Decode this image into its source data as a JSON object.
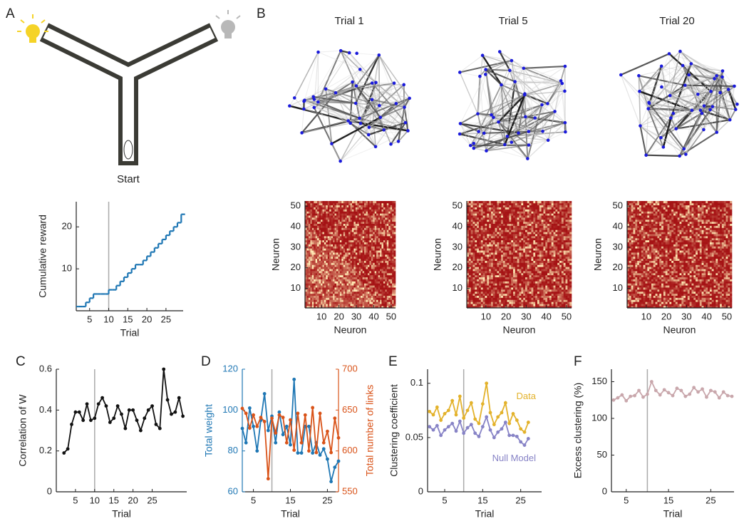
{
  "panel_labels": [
    "A",
    "B",
    "C",
    "D",
    "E",
    "F"
  ],
  "maze_label": "Start",
  "chart_data": [
    {
      "type": "step",
      "xlabel": "Trial",
      "ylabel": "Cumulative reward",
      "color": "#1f77b4",
      "x": [
        1,
        2,
        3,
        4,
        5,
        6,
        7,
        8,
        9,
        10,
        11,
        12,
        13,
        14,
        15,
        16,
        17,
        18,
        19,
        20,
        21,
        22,
        23,
        24,
        25,
        26,
        27,
        28,
        29
      ],
      "values": [
        1,
        1,
        1,
        2,
        3,
        4,
        4,
        4,
        4,
        5,
        5,
        6,
        7,
        8,
        9,
        10,
        11,
        11,
        12,
        13,
        14,
        15,
        16,
        17,
        18,
        19,
        20,
        21,
        23
      ],
      "xlim": [
        1.5,
        29.5
      ],
      "ylim": [
        0,
        26
      ],
      "xticks": [
        5,
        10,
        15,
        20,
        25
      ],
      "yticks": [
        10,
        20
      ],
      "vline": 10
    },
    {
      "type": "network",
      "title": "Trial 1"
    },
    {
      "type": "network",
      "title": "Trial 5"
    },
    {
      "type": "network",
      "title": "Trial 20"
    },
    {
      "type": "heatmap",
      "xlabel": "Neuron",
      "ylabel": "Neuron",
      "xlim": [
        0.5,
        52.5
      ],
      "ylim": [
        0.5,
        52.5
      ],
      "xticks": [
        10,
        20,
        30,
        40,
        50
      ],
      "yticks": [
        10,
        20,
        30,
        40,
        50
      ]
    },
    {
      "type": "heatmap",
      "xlabel": "Neuron",
      "ylabel": "Neuron",
      "xlim": [
        0.5,
        52.5
      ],
      "ylim": [
        0.5,
        52.5
      ],
      "xticks": [
        10,
        20,
        30,
        40,
        50
      ],
      "yticks": [
        10,
        20,
        30,
        40,
        50
      ]
    },
    {
      "type": "heatmap",
      "xlabel": "Neuron",
      "ylabel": "Neuron",
      "xlim": [
        0.5,
        52.5
      ],
      "ylim": [
        0.5,
        52.5
      ],
      "xticks": [
        10,
        20,
        30,
        40,
        50
      ],
      "yticks": [
        10,
        20,
        30,
        40,
        50
      ]
    },
    {
      "type": "line",
      "xlabel": "Trial",
      "ylabel": "Correlation of W",
      "x": [
        2,
        3,
        4,
        5,
        6,
        7,
        8,
        9,
        10,
        11,
        12,
        13,
        14,
        15,
        16,
        17,
        18,
        19,
        20,
        21,
        22,
        23,
        24,
        25,
        26,
        27,
        28,
        29,
        30,
        31,
        32,
        33
      ],
      "series": [
        {
          "color": "#111111",
          "values": [
            0.19,
            0.21,
            0.33,
            0.39,
            0.39,
            0.35,
            0.43,
            0.35,
            0.36,
            0.43,
            0.46,
            0.42,
            0.34,
            0.36,
            0.42,
            0.38,
            0.31,
            0.4,
            0.4,
            0.35,
            0.3,
            0.36,
            0.4,
            0.42,
            0.33,
            0.31,
            0.6,
            0.45,
            0.38,
            0.39,
            0.46,
            0.37
          ]
        }
      ],
      "xlim": [
        0,
        34
      ],
      "ylim": [
        0,
        0.6
      ],
      "xticks": [
        5,
        10,
        15,
        20,
        25
      ],
      "yticks": [
        0,
        0.2,
        0.4,
        0.6
      ],
      "vline": 10
    },
    {
      "type": "line",
      "xlabel": "Trial",
      "x": [
        2,
        3,
        4,
        5,
        6,
        7,
        8,
        9,
        10,
        11,
        12,
        13,
        14,
        15,
        16,
        17,
        18,
        19,
        20,
        21,
        22,
        23,
        24,
        25,
        26,
        27,
        28
      ],
      "series": [
        {
          "name": "Total weight",
          "color": "#1f77b4",
          "values": [
            91,
            84,
            101,
            92,
            80,
            95,
            108,
            90,
            97,
            84,
            99,
            88,
            92,
            83,
            115,
            79,
            79,
            92,
            92,
            79,
            84,
            78,
            81,
            76,
            65,
            72,
            75
          ]
        },
        {
          "name": "Total number of links",
          "color": "#d95319",
          "axis": "y2",
          "values": [
            652,
            646,
            628,
            644,
            630,
            641,
            636,
            566,
            640,
            622,
            644,
            641,
            610,
            638,
            601,
            646,
            610,
            644,
            600,
            653,
            598,
            646,
            610,
            624,
            598,
            640,
            616
          ]
        }
      ],
      "xlim": [
        2,
        28
      ],
      "ylim": [
        60,
        120
      ],
      "yticks": [
        60,
        80,
        100,
        120
      ],
      "y2lim": [
        550,
        700
      ],
      "y2ticks": [
        550,
        600,
        650,
        700
      ],
      "xticks": [
        5,
        15,
        25
      ],
      "vline": 10
    },
    {
      "type": "line",
      "xlabel": "Trial",
      "ylabel": "Clustering coefficient",
      "x": [
        1,
        2,
        3,
        4,
        5,
        6,
        7,
        8,
        9,
        10,
        11,
        12,
        13,
        14,
        15,
        16,
        17,
        18,
        19,
        20,
        21,
        22,
        23,
        24,
        25,
        26,
        27
      ],
      "series": [
        {
          "name": "Data",
          "color": "#e3b22b",
          "values": [
            0.074,
            0.071,
            0.078,
            0.066,
            0.072,
            0.075,
            0.084,
            0.071,
            0.088,
            0.068,
            0.075,
            0.082,
            0.067,
            0.063,
            0.081,
            0.1,
            0.073,
            0.062,
            0.069,
            0.073,
            0.082,
            0.063,
            0.072,
            0.066,
            0.058,
            0.055,
            0.064
          ]
        },
        {
          "name": "Null Model",
          "color": "#8783c6",
          "values": [
            0.06,
            0.057,
            0.061,
            0.052,
            0.057,
            0.06,
            0.063,
            0.056,
            0.065,
            0.054,
            0.059,
            0.062,
            0.054,
            0.051,
            0.06,
            0.069,
            0.057,
            0.05,
            0.055,
            0.058,
            0.064,
            0.052,
            0.052,
            0.051,
            0.046,
            0.043,
            0.049
          ]
        }
      ],
      "xlim": [
        0.5,
        30.5
      ],
      "ylim": [
        0,
        0.113
      ],
      "xticks": [
        5,
        15,
        25
      ],
      "yticks": [
        0,
        0.05,
        0.1
      ],
      "vline": 10
    },
    {
      "type": "line",
      "xlabel": "Trial",
      "ylabel": "Excess clustering (%)",
      "x": [
        2,
        3,
        4,
        5,
        6,
        7,
        8,
        9,
        10,
        11,
        12,
        13,
        14,
        15,
        16,
        17,
        18,
        19,
        20,
        21,
        22,
        23,
        24,
        25,
        26,
        27,
        28,
        29,
        30
      ],
      "series": [
        {
          "color": "#c9a7ac",
          "values": [
            125,
            128,
            132,
            124,
            130,
            131,
            138,
            129,
            133,
            150,
            138,
            132,
            139,
            135,
            131,
            141,
            138,
            130,
            133,
            142,
            136,
            140,
            129,
            138,
            136,
            128,
            136,
            131,
            130
          ]
        }
      ],
      "xlim": [
        1.5,
        30.5
      ],
      "ylim": [
        0,
        167
      ],
      "xticks": [
        5,
        15,
        25
      ],
      "yticks": [
        0,
        50,
        100,
        150
      ],
      "vline": 10
    }
  ]
}
